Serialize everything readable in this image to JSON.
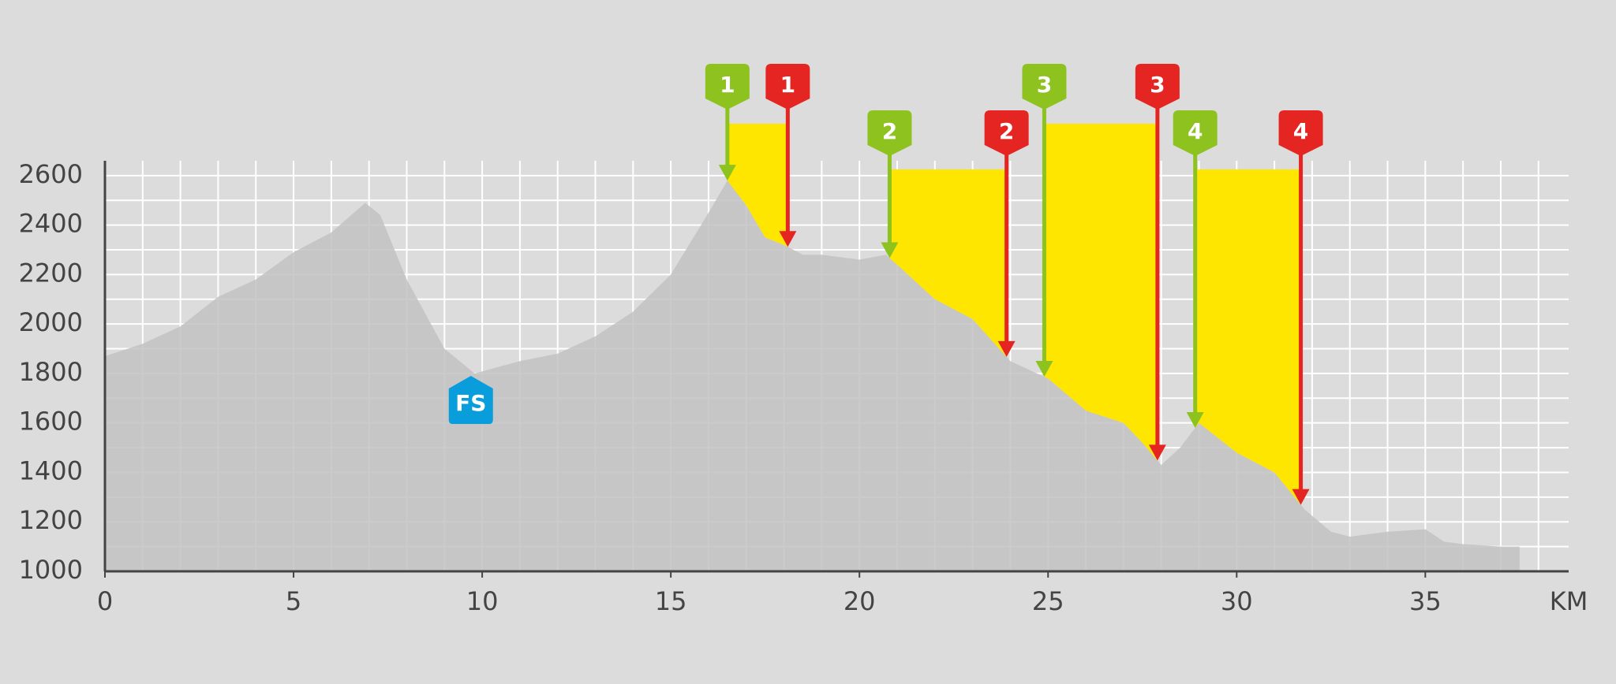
{
  "chart_data": {
    "type": "area",
    "x_unit": "KM",
    "x": [
      0,
      1,
      2,
      3,
      4,
      5,
      6,
      6.9,
      7.3,
      8,
      9,
      9.8,
      11,
      12,
      13,
      14,
      15,
      16,
      16.5,
      17,
      17.5,
      18,
      18.5,
      19,
      20,
      20.7,
      21,
      22,
      23,
      24,
      25,
      26,
      27,
      27.5,
      28,
      28.5,
      29,
      30,
      31,
      31.8,
      32.5,
      33,
      34,
      35,
      35.5,
      36,
      37,
      37.5
    ],
    "values": [
      1870,
      1920,
      1990,
      2110,
      2180,
      2290,
      2370,
      2490,
      2440,
      2180,
      1900,
      1800,
      1850,
      1880,
      1950,
      2050,
      2200,
      2450,
      2580,
      2480,
      2350,
      2320,
      2280,
      2280,
      2260,
      2280,
      2240,
      2100,
      2020,
      1850,
      1780,
      1650,
      1600,
      1520,
      1430,
      1500,
      1600,
      1480,
      1400,
      1250,
      1160,
      1140,
      1160,
      1170,
      1120,
      1110,
      1100,
      1100
    ],
    "color": "#c2c2c2",
    "xlim": [
      0,
      38.8
    ],
    "xticks": [
      0,
      5,
      10,
      15,
      20,
      25,
      30,
      35
    ],
    "ylim": [
      1000,
      2660
    ],
    "yticks": [
      1000,
      1200,
      1400,
      1600,
      1800,
      2000,
      2200,
      2400,
      2600
    ],
    "grid": true,
    "segments": [
      {
        "label": "1",
        "start": 16.5,
        "end": 18.1
      },
      {
        "label": "2",
        "start": 20.8,
        "end": 23.9
      },
      {
        "label": "3",
        "start": 24.9,
        "end": 27.9
      },
      {
        "label": "4",
        "start": 28.9,
        "end": 31.7
      }
    ],
    "segment_color": "#ffe600",
    "start_color": "#8dc21f",
    "end_color": "#e52521",
    "markers": [
      {
        "label": "FS",
        "x": 9.7,
        "color": "#0a9ddb"
      }
    ]
  }
}
